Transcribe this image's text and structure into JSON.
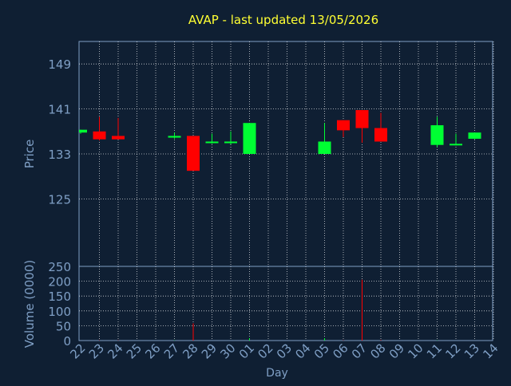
{
  "chart_data": {
    "type": "candlestick",
    "title": "AVAP - last updated 13/05/2026",
    "xlabel": "Day",
    "price_panel": {
      "ylabel": "Price",
      "ylim": [
        113,
        153
      ],
      "yticks": [
        "149",
        "141",
        "133",
        "125"
      ],
      "ytick_values": [
        149,
        141,
        133,
        125
      ]
    },
    "volume_panel": {
      "ylabel": "Volume (0000)",
      "ylim": [
        0,
        250
      ],
      "yticks": [
        "250",
        "200",
        "150",
        "100",
        "50",
        "0"
      ],
      "ytick_values": [
        250,
        200,
        150,
        100,
        50,
        0
      ]
    },
    "x_ticks": [
      "22",
      "23",
      "24",
      "25",
      "26",
      "27",
      "28",
      "29",
      "30",
      "01",
      "02",
      "03",
      "04",
      "05",
      "06",
      "07",
      "08",
      "09",
      "10",
      "11",
      "12",
      "13",
      "14"
    ],
    "candles": [
      {
        "day": "22",
        "open": 136.8,
        "close": 137.3,
        "high": 137.3,
        "low": 136.6,
        "volume": 0
      },
      {
        "day": "23",
        "open": 137.0,
        "close": 135.6,
        "high": 139.6,
        "low": 135.4,
        "volume": 1
      },
      {
        "day": "24",
        "open": 136.2,
        "close": 135.6,
        "high": 139.4,
        "low": 135.6,
        "volume": 1
      },
      {
        "day": "27",
        "open": 135.9,
        "close": 136.2,
        "high": 136.8,
        "low": 135.7,
        "volume": 1
      },
      {
        "day": "28",
        "open": 136.2,
        "close": 130.0,
        "high": 136.2,
        "low": 130.0,
        "volume": 58
      },
      {
        "day": "29",
        "open": 135.0,
        "close": 135.2,
        "high": 136.6,
        "low": 134.8,
        "volume": 0
      },
      {
        "day": "30",
        "open": 135.0,
        "close": 135.2,
        "high": 137.0,
        "low": 134.7,
        "volume": 0
      },
      {
        "day": "01",
        "open": 133.0,
        "close": 138.5,
        "high": 138.5,
        "low": 133.0,
        "volume": 8
      },
      {
        "day": "05",
        "open": 133.0,
        "close": 135.2,
        "high": 138.5,
        "low": 133.0,
        "volume": 8
      },
      {
        "day": "06",
        "open": 139.0,
        "close": 137.2,
        "high": 139.0,
        "low": 136.0,
        "volume": 1
      },
      {
        "day": "07",
        "open": 140.8,
        "close": 137.6,
        "high": 140.8,
        "low": 135.0,
        "volume": 205
      },
      {
        "day": "08",
        "open": 137.6,
        "close": 135.2,
        "high": 140.3,
        "low": 135.2,
        "volume": 2
      },
      {
        "day": "11",
        "open": 134.6,
        "close": 138.1,
        "high": 139.6,
        "low": 134.2,
        "volume": 1
      },
      {
        "day": "12",
        "open": 134.6,
        "close": 134.8,
        "high": 136.6,
        "low": 134.5,
        "volume": 0
      },
      {
        "day": "13",
        "open": 135.7,
        "close": 136.8,
        "high": 136.8,
        "low": 135.6,
        "volume": 0
      }
    ],
    "colors": {
      "background": "#0f1f33",
      "up": "#00ff33",
      "down": "#ff0000",
      "title": "#ffff33",
      "axis_text": "#7f9fc5",
      "grid": "#ffffff"
    },
    "grid": true
  }
}
